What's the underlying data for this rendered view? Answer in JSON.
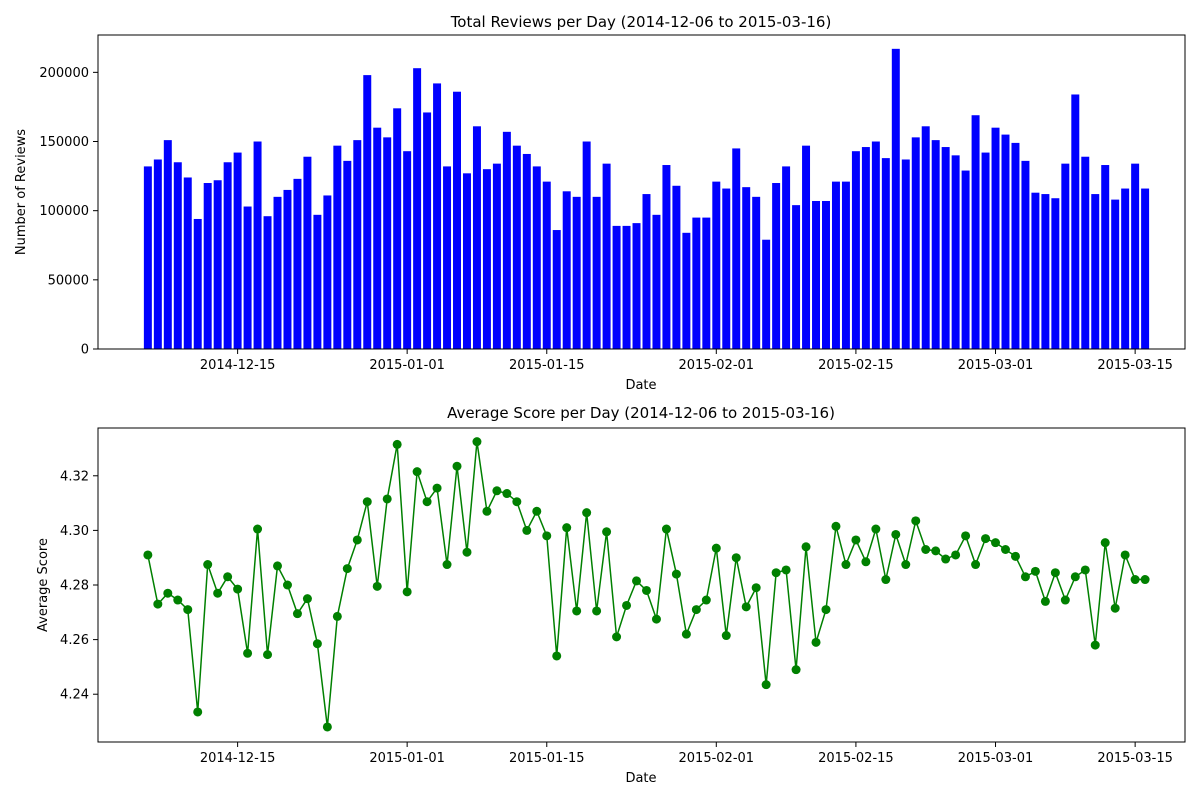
{
  "chart_data": [
    {
      "type": "bar",
      "title": "Total Reviews per Day (2014-12-06 to 2015-03-16)",
      "xlabel": "Date",
      "ylabel": "Number of Reviews",
      "ylim": [
        0,
        227000
      ],
      "yticks": [
        0,
        50000,
        100000,
        150000,
        200000
      ],
      "xlim": [
        "2014-12-01",
        "2015-03-20"
      ],
      "xticks": [
        "2014-12-15",
        "2015-01-01",
        "2015-01-15",
        "2015-02-01",
        "2015-02-15",
        "2015-03-01",
        "2015-03-15"
      ],
      "color": "#0000ff",
      "grid": false,
      "x": [
        "2014-12-06",
        "2014-12-07",
        "2014-12-08",
        "2014-12-09",
        "2014-12-10",
        "2014-12-11",
        "2014-12-12",
        "2014-12-13",
        "2014-12-14",
        "2014-12-15",
        "2014-12-16",
        "2014-12-17",
        "2014-12-18",
        "2014-12-19",
        "2014-12-20",
        "2014-12-21",
        "2014-12-22",
        "2014-12-23",
        "2014-12-24",
        "2014-12-25",
        "2014-12-26",
        "2014-12-27",
        "2014-12-28",
        "2014-12-29",
        "2014-12-30",
        "2014-12-31",
        "2015-01-01",
        "2015-01-02",
        "2015-01-03",
        "2015-01-04",
        "2015-01-05",
        "2015-01-06",
        "2015-01-07",
        "2015-01-08",
        "2015-01-09",
        "2015-01-10",
        "2015-01-11",
        "2015-01-12",
        "2015-01-13",
        "2015-01-14",
        "2015-01-15",
        "2015-01-16",
        "2015-01-17",
        "2015-01-18",
        "2015-01-19",
        "2015-01-20",
        "2015-01-21",
        "2015-01-22",
        "2015-01-23",
        "2015-01-24",
        "2015-01-25",
        "2015-01-26",
        "2015-01-27",
        "2015-01-28",
        "2015-01-29",
        "2015-01-30",
        "2015-01-31",
        "2015-02-01",
        "2015-02-02",
        "2015-02-03",
        "2015-02-04",
        "2015-02-05",
        "2015-02-06",
        "2015-02-07",
        "2015-02-08",
        "2015-02-09",
        "2015-02-10",
        "2015-02-11",
        "2015-02-12",
        "2015-02-13",
        "2015-02-14",
        "2015-02-15",
        "2015-02-16",
        "2015-02-17",
        "2015-02-18",
        "2015-02-19",
        "2015-02-20",
        "2015-02-21",
        "2015-02-22",
        "2015-02-23",
        "2015-02-24",
        "2015-02-25",
        "2015-02-26",
        "2015-02-27",
        "2015-02-28",
        "2015-03-01",
        "2015-03-02",
        "2015-03-03",
        "2015-03-04",
        "2015-03-05",
        "2015-03-06",
        "2015-03-07",
        "2015-03-08",
        "2015-03-09",
        "2015-03-10",
        "2015-03-11",
        "2015-03-12",
        "2015-03-13",
        "2015-03-14",
        "2015-03-15",
        "2015-03-16"
      ],
      "values": [
        132000,
        137000,
        151000,
        135000,
        124000,
        94000,
        120000,
        122000,
        135000,
        142000,
        103000,
        150000,
        96000,
        110000,
        115000,
        123000,
        139000,
        97000,
        111000,
        147000,
        136000,
        151000,
        198000,
        160000,
        153000,
        174000,
        143000,
        203000,
        171000,
        192000,
        132000,
        186000,
        127000,
        161000,
        130000,
        134000,
        157000,
        147000,
        141000,
        132000,
        121000,
        86000,
        114000,
        110000,
        150000,
        110000,
        134000,
        89000,
        89000,
        91000,
        112000,
        97000,
        133000,
        118000,
        84000,
        95000,
        95000,
        121000,
        116000,
        145000,
        117000,
        110000,
        79000,
        120000,
        132000,
        104000,
        147000,
        107000,
        107000,
        121000,
        121000,
        143000,
        146000,
        150000,
        138000,
        217000,
        137000,
        153000,
        161000,
        151000,
        146000,
        140000,
        129000,
        169000,
        142000,
        160000,
        155000,
        149000,
        136000,
        113000,
        112000,
        109000,
        134000,
        184000,
        139000,
        112000,
        133000,
        108000,
        116000,
        134000,
        116000
      ]
    },
    {
      "type": "line",
      "title": "Average Score per Day (2014-12-06 to 2015-03-16)",
      "xlabel": "Date",
      "ylabel": "Average Score",
      "ylim": [
        4.2225,
        4.3375
      ],
      "yticks": [
        4.24,
        4.26,
        4.28,
        4.3,
        4.32
      ],
      "xlim": [
        "2014-12-01",
        "2015-03-20"
      ],
      "xticks": [
        "2014-12-15",
        "2015-01-01",
        "2015-01-15",
        "2015-02-01",
        "2015-02-15",
        "2015-03-01",
        "2015-03-15"
      ],
      "color": "#008000",
      "marker": "circle",
      "grid": false,
      "x": [
        "2014-12-06",
        "2014-12-07",
        "2014-12-08",
        "2014-12-09",
        "2014-12-10",
        "2014-12-11",
        "2014-12-12",
        "2014-12-13",
        "2014-12-14",
        "2014-12-15",
        "2014-12-16",
        "2014-12-17",
        "2014-12-18",
        "2014-12-19",
        "2014-12-20",
        "2014-12-21",
        "2014-12-22",
        "2014-12-23",
        "2014-12-24",
        "2014-12-25",
        "2014-12-26",
        "2014-12-27",
        "2014-12-28",
        "2014-12-29",
        "2014-12-30",
        "2014-12-31",
        "2015-01-01",
        "2015-01-02",
        "2015-01-03",
        "2015-01-04",
        "2015-01-05",
        "2015-01-06",
        "2015-01-07",
        "2015-01-08",
        "2015-01-09",
        "2015-01-10",
        "2015-01-11",
        "2015-01-12",
        "2015-01-13",
        "2015-01-14",
        "2015-01-15",
        "2015-01-16",
        "2015-01-17",
        "2015-01-18",
        "2015-01-19",
        "2015-01-20",
        "2015-01-21",
        "2015-01-22",
        "2015-01-23",
        "2015-01-24",
        "2015-01-25",
        "2015-01-26",
        "2015-01-27",
        "2015-01-28",
        "2015-01-29",
        "2015-01-30",
        "2015-01-31",
        "2015-02-01",
        "2015-02-02",
        "2015-02-03",
        "2015-02-04",
        "2015-02-05",
        "2015-02-06",
        "2015-02-07",
        "2015-02-08",
        "2015-02-09",
        "2015-02-10",
        "2015-02-11",
        "2015-02-12",
        "2015-02-13",
        "2015-02-14",
        "2015-02-15",
        "2015-02-16",
        "2015-02-17",
        "2015-02-18",
        "2015-02-19",
        "2015-02-20",
        "2015-02-21",
        "2015-02-22",
        "2015-02-23",
        "2015-02-24",
        "2015-02-25",
        "2015-02-26",
        "2015-02-27",
        "2015-02-28",
        "2015-03-01",
        "2015-03-02",
        "2015-03-03",
        "2015-03-04",
        "2015-03-05",
        "2015-03-06",
        "2015-03-07",
        "2015-03-08",
        "2015-03-09",
        "2015-03-10",
        "2015-03-11",
        "2015-03-12",
        "2015-03-13",
        "2015-03-14",
        "2015-03-15",
        "2015-03-16"
      ],
      "values": [
        4.291,
        4.273,
        4.277,
        4.2745,
        4.271,
        4.2335,
        4.2875,
        4.277,
        4.283,
        4.2785,
        4.255,
        4.3005,
        4.2545,
        4.287,
        4.28,
        4.2695,
        4.275,
        4.2585,
        4.228,
        4.2685,
        4.286,
        4.2965,
        4.3105,
        4.2795,
        4.3115,
        4.3315,
        4.2775,
        4.3215,
        4.3105,
        4.3155,
        4.2875,
        4.3235,
        4.292,
        4.3325,
        4.307,
        4.3145,
        4.3135,
        4.3105,
        4.3,
        4.307,
        4.298,
        4.254,
        4.301,
        4.2705,
        4.3065,
        4.2705,
        4.2995,
        4.261,
        4.2725,
        4.2815,
        4.278,
        4.2675,
        4.3005,
        4.284,
        4.262,
        4.271,
        4.2745,
        4.2935,
        4.2615,
        4.29,
        4.272,
        4.279,
        4.2435,
        4.2845,
        4.2855,
        4.249,
        4.294,
        4.259,
        4.271,
        4.3015,
        4.2875,
        4.2965,
        4.2885,
        4.3005,
        4.282,
        4.2985,
        4.2875,
        4.3035,
        4.293,
        4.2925,
        4.2895,
        4.291,
        4.298,
        4.2875,
        4.297,
        4.2955,
        4.293,
        4.2905,
        4.283,
        4.285,
        4.274,
        4.2845,
        4.2745,
        4.283,
        4.2855,
        4.258,
        4.2955,
        4.2715,
        4.291,
        4.282,
        4.282
      ]
    }
  ]
}
